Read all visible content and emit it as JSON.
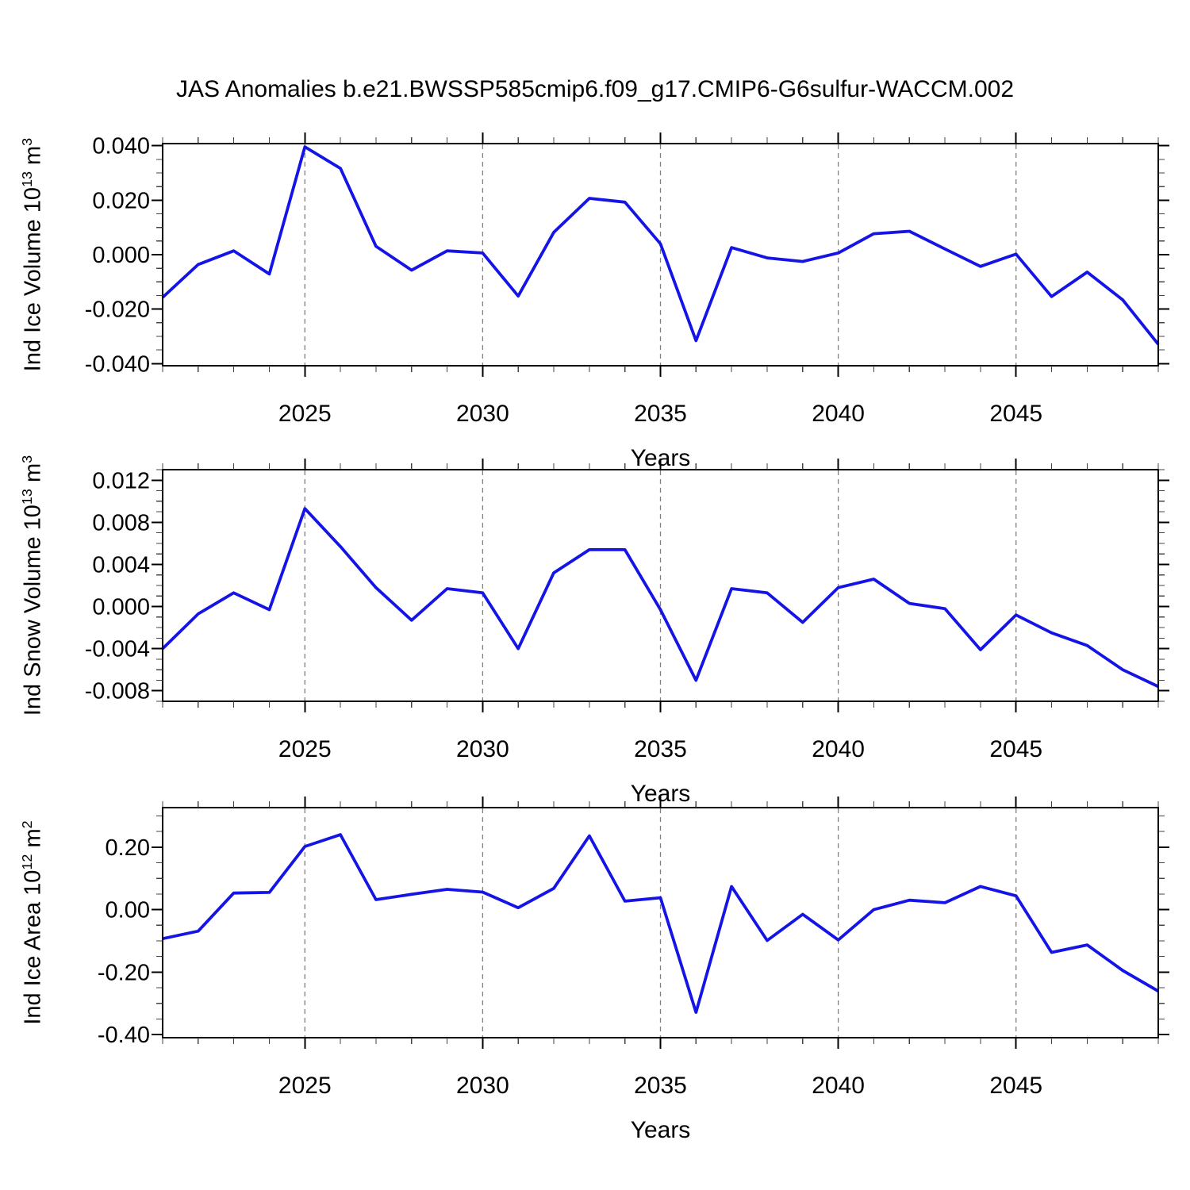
{
  "title": "JAS Anomalies b.e21.BWSSP585cmip6.f09_g17.CMIP6-G6sulfur-WACCM.002",
  "figure": {
    "background": "#ffffff",
    "line_color": "#1414e6",
    "grid_color": "#808080",
    "axis_color": "#000000",
    "minor_tick_color": "#444444"
  },
  "chart_data": [
    {
      "type": "line",
      "ylabel": "Ind Ice Volume 10^13 m^3",
      "ylabel_parts": {
        "base": "Ind Ice Volume 10",
        "sup1": "13",
        "mid": " m",
        "sup2": "3"
      },
      "xlabel": "Years",
      "x": [
        2021,
        2022,
        2023,
        2024,
        2025,
        2026,
        2027,
        2028,
        2029,
        2030,
        2031,
        2032,
        2033,
        2034,
        2035,
        2036,
        2037,
        2038,
        2039,
        2040,
        2041,
        2042,
        2043,
        2044,
        2045,
        2046,
        2047,
        2048,
        2049
      ],
      "values": [
        -0.0157,
        -0.0036,
        0.0014,
        -0.0071,
        0.0396,
        0.0317,
        0.0031,
        -0.0057,
        0.0014,
        0.0006,
        -0.0152,
        0.0082,
        0.0207,
        0.0193,
        0.004,
        -0.0316,
        0.0026,
        -0.0012,
        -0.0025,
        0.0006,
        0.0077,
        0.0086,
        0.0021,
        -0.0043,
        0.0002,
        -0.0154,
        -0.0064,
        -0.0166,
        -0.0329
      ],
      "xlim": [
        2021,
        2049
      ],
      "ylim": [
        -0.0408,
        0.0408
      ],
      "x_major_ticks": [
        {
          "v": 2025,
          "label": "2025"
        },
        {
          "v": 2030,
          "label": "2030"
        },
        {
          "v": 2035,
          "label": "2035"
        },
        {
          "v": 2040,
          "label": "2040"
        },
        {
          "v": 2045,
          "label": "2045"
        }
      ],
      "x_minor_step": 1,
      "y_major_ticks": [
        {
          "v": 0.04,
          "label": "0.040"
        },
        {
          "v": 0.02,
          "label": "0.020"
        },
        {
          "v": 0,
          "label": "0.000"
        },
        {
          "v": -0.02,
          "label": "-0.020"
        },
        {
          "v": -0.04,
          "label": "-0.040"
        }
      ],
      "y_minor_step": 0.005,
      "grid": "vertical dashed lines at major x ticks",
      "legend": "none"
    },
    {
      "type": "line",
      "ylabel": "Ind Snow Volume 10^13 m^3",
      "ylabel_parts": {
        "base": "Ind Snow Volume 10",
        "sup1": "13",
        "mid": " m",
        "sup2": "3"
      },
      "xlabel": "Years",
      "x": [
        2021,
        2022,
        2023,
        2024,
        2025,
        2026,
        2027,
        2028,
        2029,
        2030,
        2031,
        2032,
        2033,
        2034,
        2035,
        2036,
        2037,
        2038,
        2039,
        2040,
        2041,
        2042,
        2043,
        2044,
        2045,
        2046,
        2047,
        2048,
        2049
      ],
      "values": [
        -0.004,
        -0.0007,
        0.0013,
        -0.0003,
        0.0093,
        0.0057,
        0.0018,
        -0.0013,
        0.0017,
        0.0013,
        -0.004,
        0.0032,
        0.0054,
        0.0054,
        -0.0003,
        -0.007,
        0.0017,
        0.0013,
        -0.0015,
        0.0018,
        0.0026,
        0.0003,
        -0.0002,
        -0.0041,
        -0.0008,
        -0.0025,
        -0.0037,
        -0.006,
        -0.0076
      ],
      "xlim": [
        2021,
        2049
      ],
      "ylim": [
        -0.009,
        0.013
      ],
      "x_major_ticks": [
        {
          "v": 2025,
          "label": "2025"
        },
        {
          "v": 2030,
          "label": "2030"
        },
        {
          "v": 2035,
          "label": "2035"
        },
        {
          "v": 2040,
          "label": "2040"
        },
        {
          "v": 2045,
          "label": "2045"
        }
      ],
      "x_minor_step": 1,
      "y_major_ticks": [
        {
          "v": 0.012,
          "label": "0.012"
        },
        {
          "v": 0.008,
          "label": "0.008"
        },
        {
          "v": 0.004,
          "label": "0.004"
        },
        {
          "v": 0,
          "label": "0.000"
        },
        {
          "v": -0.004,
          "label": "-0.004"
        },
        {
          "v": -0.008,
          "label": "-0.008"
        }
      ],
      "y_minor_step": 0.001,
      "grid": "vertical dashed lines at major x ticks",
      "legend": "none"
    },
    {
      "type": "line",
      "ylabel": "Ind Ice Area 10^12 m^2",
      "ylabel_parts": {
        "base": "Ind Ice Area 10",
        "sup1": "12",
        "mid": " m",
        "sup2": "2"
      },
      "xlabel": "Years",
      "x": [
        2021,
        2022,
        2023,
        2024,
        2025,
        2026,
        2027,
        2028,
        2029,
        2030,
        2031,
        2032,
        2033,
        2034,
        2035,
        2036,
        2037,
        2038,
        2039,
        2040,
        2041,
        2042,
        2043,
        2044,
        2045,
        2046,
        2047,
        2048,
        2049
      ],
      "values": [
        -0.093,
        -0.069,
        0.053,
        0.055,
        0.202,
        0.24,
        0.032,
        0.049,
        0.065,
        0.056,
        0.006,
        0.068,
        0.236,
        0.027,
        0.038,
        -0.329,
        0.074,
        -0.099,
        -0.015,
        -0.097,
        0.0,
        0.03,
        0.022,
        0.074,
        0.044,
        -0.137,
        -0.113,
        -0.195,
        -0.261
      ],
      "xlim": [
        2021,
        2049
      ],
      "ylim": [
        -0.41,
        0.3265
      ],
      "x_major_ticks": [
        {
          "v": 2025,
          "label": "2025"
        },
        {
          "v": 2030,
          "label": "2030"
        },
        {
          "v": 2035,
          "label": "2035"
        },
        {
          "v": 2040,
          "label": "2040"
        },
        {
          "v": 2045,
          "label": "2045"
        }
      ],
      "x_minor_step": 1,
      "y_major_ticks": [
        {
          "v": 0.2,
          "label": "0.20"
        },
        {
          "v": 0,
          "label": "0.00"
        },
        {
          "v": -0.2,
          "label": "-0.20"
        },
        {
          "v": -0.4,
          "label": "-0.40"
        }
      ],
      "y_minor_step": 0.05,
      "grid": "vertical dashed lines at major x ticks",
      "legend": "none"
    }
  ]
}
